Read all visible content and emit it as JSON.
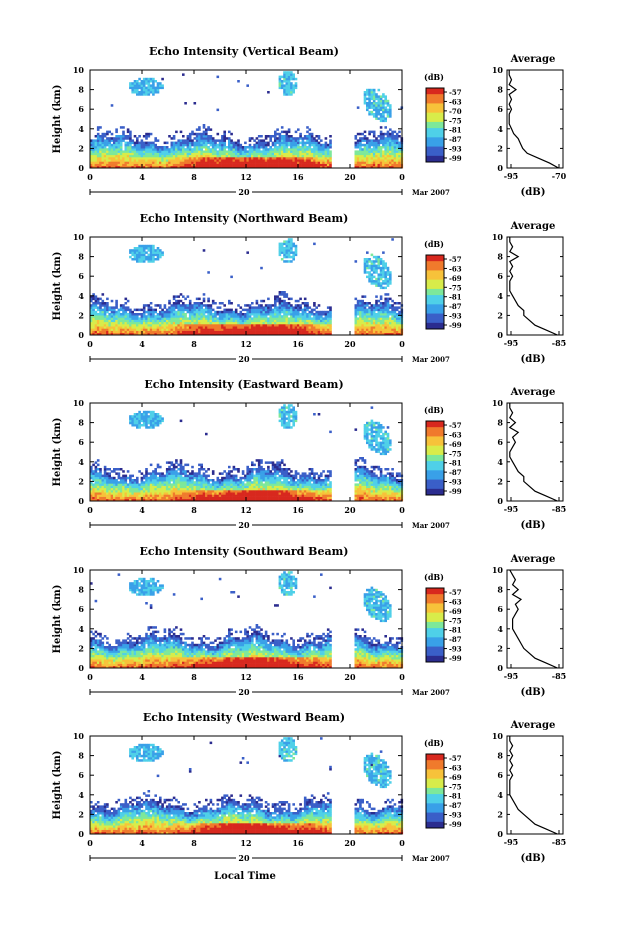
{
  "figure": {
    "xlabel": "Local Time",
    "date_label": "Mar 2007",
    "day_label": "20",
    "ylabel": "Height (km)",
    "colorbar_unit": "(dB)",
    "avg_title": "Average",
    "avg_xlabel": "(dB)",
    "colors": [
      "#2b2c8f",
      "#3a5fc8",
      "#39a0e8",
      "#4fd0e8",
      "#7de89a",
      "#d8ec4a",
      "#f7c23a",
      "#f07a2c",
      "#d8281e"
    ]
  },
  "chart_data": [
    {
      "type": "heatmap",
      "title": "Echo Intensity (Vertical Beam)",
      "ylabel": "Height (km)",
      "xlabel": "",
      "ylim": [
        0,
        10
      ],
      "xlim": [
        0,
        24
      ],
      "x_ticks": [
        "0",
        "4",
        "8",
        "12",
        "16",
        "20",
        "0"
      ],
      "y_ticks": [
        "0",
        "2",
        "4",
        "6",
        "8",
        "10"
      ],
      "colorbar_ticks": [
        "-57",
        "-63",
        "-70",
        "-75",
        "-81",
        "-87",
        "-93",
        "-99"
      ],
      "data_gap_hours": [
        18.5,
        20.2
      ],
      "average_profile": {
        "xlim": [
          -95,
          -70
        ],
        "x_ticks": [
          "-95",
          "-70"
        ],
        "heights": [
          0,
          0.5,
          1,
          1.5,
          2,
          2.5,
          3,
          3.5,
          4,
          4.5,
          5,
          5.5,
          6,
          6.5,
          7,
          7.5,
          8,
          8.5,
          9,
          9.5,
          10
        ],
        "values": [
          -72,
          -76,
          -81,
          -86,
          -88,
          -89,
          -90,
          -92,
          -93,
          -94,
          -94,
          -94,
          -93,
          -94,
          -93,
          -94,
          -91,
          -94,
          -93,
          -94,
          -94
        ]
      }
    },
    {
      "type": "heatmap",
      "title": "Echo Intensity (Northward Beam)",
      "ylabel": "Height (km)",
      "xlabel": "",
      "ylim": [
        0,
        10
      ],
      "xlim": [
        0,
        24
      ],
      "x_ticks": [
        "0",
        "4",
        "8",
        "12",
        "16",
        "20",
        "0"
      ],
      "y_ticks": [
        "0",
        "2",
        "4",
        "6",
        "8",
        "10"
      ],
      "colorbar_ticks": [
        "-57",
        "-63",
        "-69",
        "-75",
        "-81",
        "-87",
        "-93",
        "-99"
      ],
      "data_gap_hours": [
        18.5,
        20.2
      ],
      "average_profile": {
        "xlim": [
          -95,
          -85
        ],
        "x_ticks": [
          "-95",
          "-85"
        ],
        "heights": [
          0,
          0.5,
          1,
          1.5,
          2,
          2.5,
          3,
          3.5,
          4,
          4.5,
          5,
          5.5,
          6,
          6.5,
          7,
          7.5,
          8,
          8.5,
          9,
          9.5,
          10
        ],
        "values": [
          -86,
          -88,
          -90,
          -91,
          -92,
          -92,
          -93,
          -93.5,
          -94,
          -94.5,
          -94.5,
          -94.5,
          -94,
          -94.5,
          -94,
          -94.5,
          -93,
          -94.5,
          -94,
          -94.5,
          -94.5
        ]
      }
    },
    {
      "type": "heatmap",
      "title": "Echo Intensity (Eastward Beam)",
      "ylabel": "Height (km)",
      "xlabel": "",
      "ylim": [
        0,
        10
      ],
      "xlim": [
        0,
        24
      ],
      "x_ticks": [
        "0",
        "4",
        "8",
        "12",
        "16",
        "20",
        "0"
      ],
      "y_ticks": [
        "0",
        "2",
        "4",
        "6",
        "8",
        "10"
      ],
      "colorbar_ticks": [
        "-57",
        "-63",
        "-69",
        "-75",
        "-81",
        "-87",
        "-93",
        "-99"
      ],
      "data_gap_hours": [
        18.5,
        20.2
      ],
      "average_profile": {
        "xlim": [
          -95,
          -85
        ],
        "x_ticks": [
          "-95",
          "-85"
        ],
        "heights": [
          0,
          0.5,
          1,
          1.5,
          2,
          2.5,
          3,
          3.5,
          4,
          4.5,
          5,
          5.5,
          6,
          6.5,
          7,
          7.5,
          8,
          8.5,
          9,
          9.5,
          10
        ],
        "values": [
          -86,
          -88,
          -90,
          -91,
          -92,
          -92,
          -93,
          -93.5,
          -94,
          -94.5,
          -94.5,
          -94,
          -93.5,
          -94,
          -93,
          -94.5,
          -93.5,
          -94.5,
          -94,
          -94.5,
          -94.5
        ]
      }
    },
    {
      "type": "heatmap",
      "title": "Echo Intensity (Southward Beam)",
      "ylabel": "Height (km)",
      "xlabel": "",
      "ylim": [
        0,
        10
      ],
      "xlim": [
        0,
        24
      ],
      "x_ticks": [
        "0",
        "4",
        "8",
        "12",
        "16",
        "20",
        "0"
      ],
      "y_ticks": [
        "0",
        "2",
        "4",
        "6",
        "8",
        "10"
      ],
      "colorbar_ticks": [
        "-57",
        "-63",
        "-69",
        "-75",
        "-81",
        "-87",
        "-93",
        "-99"
      ],
      "data_gap_hours": [
        18.5,
        20.2
      ],
      "average_profile": {
        "xlim": [
          -95,
          -85
        ],
        "x_ticks": [
          "-95",
          "-85"
        ],
        "heights": [
          0,
          0.5,
          1,
          1.5,
          2,
          2.5,
          3,
          3.5,
          4,
          4.5,
          5,
          5.5,
          6,
          6.5,
          7,
          7.5,
          8,
          8.5,
          9,
          9.5,
          10
        ],
        "values": [
          -86,
          -88,
          -90,
          -91,
          -92,
          -92.5,
          -93,
          -93.5,
          -94,
          -94,
          -94,
          -93.5,
          -93,
          -93.5,
          -92.5,
          -94,
          -93,
          -94,
          -93.5,
          -94,
          -94.5
        ]
      }
    },
    {
      "type": "heatmap",
      "title": "Echo Intensity (Westward Beam)",
      "ylabel": "Height (km)",
      "xlabel": "Local Time",
      "ylim": [
        0,
        10
      ],
      "xlim": [
        0,
        24
      ],
      "x_ticks": [
        "0",
        "4",
        "8",
        "12",
        "16",
        "20",
        "0"
      ],
      "y_ticks": [
        "0",
        "2",
        "4",
        "6",
        "8",
        "10"
      ],
      "colorbar_ticks": [
        "-57",
        "-63",
        "-69",
        "-75",
        "-81",
        "-87",
        "-93",
        "-99"
      ],
      "data_gap_hours": [
        18.5,
        20.2
      ],
      "average_profile": {
        "xlim": [
          -95,
          -85
        ],
        "x_ticks": [
          "-95",
          "-85"
        ],
        "heights": [
          0,
          0.5,
          1,
          1.5,
          2,
          2.5,
          3,
          3.5,
          4,
          4.5,
          5,
          5.5,
          6,
          6.5,
          7,
          7.5,
          8,
          8.5,
          9,
          9.5,
          10
        ],
        "values": [
          -86,
          -88,
          -90,
          -91,
          -92,
          -93,
          -93.5,
          -94,
          -94.5,
          -94.5,
          -94.5,
          -94.5,
          -94,
          -94.5,
          -94,
          -94.5,
          -94,
          -94.5,
          -94,
          -94.5,
          -94.5
        ]
      }
    }
  ]
}
